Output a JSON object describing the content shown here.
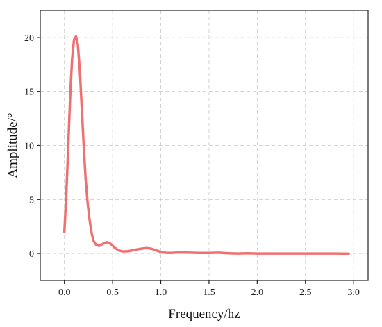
{
  "chart_data": {
    "type": "line",
    "title": "",
    "xlabel": "Frequency/hz",
    "ylabel": "Amplitude/°",
    "xlim": [
      -0.25,
      3.15
    ],
    "ylim": [
      -2.5,
      22.5
    ],
    "x_ticks": [
      0.0,
      0.5,
      1.0,
      1.5,
      2.0,
      2.5,
      3.0
    ],
    "x_tick_labels": [
      "0.0",
      "0.5",
      "1.0",
      "1.5",
      "2.0",
      "2.5",
      "3.0"
    ],
    "y_ticks": [
      0,
      5,
      10,
      15,
      20
    ],
    "y_tick_labels": [
      "0",
      "5",
      "10",
      "15",
      "20"
    ],
    "grid": true,
    "line_color": "#f07070",
    "series": [
      {
        "x": [
          0.0,
          0.02,
          0.04,
          0.06,
          0.08,
          0.1,
          0.12,
          0.14,
          0.16,
          0.18,
          0.2,
          0.22,
          0.24,
          0.26,
          0.28,
          0.3,
          0.33,
          0.36,
          0.4,
          0.44,
          0.48,
          0.52,
          0.56,
          0.6,
          0.65,
          0.7,
          0.75,
          0.8,
          0.85,
          0.9,
          0.95,
          1.0,
          1.05,
          1.1,
          1.2,
          1.3,
          1.4,
          1.5,
          1.6,
          1.7,
          1.8,
          1.9,
          2.0,
          2.2,
          2.4,
          2.6,
          2.8,
          2.95
        ],
        "y": [
          2.0,
          5.5,
          10.0,
          14.5,
          18.0,
          19.8,
          20.1,
          19.3,
          17.0,
          13.5,
          10.0,
          7.0,
          4.8,
          3.2,
          2.0,
          1.2,
          0.8,
          0.7,
          0.9,
          1.05,
          0.9,
          0.55,
          0.3,
          0.2,
          0.2,
          0.28,
          0.38,
          0.45,
          0.5,
          0.45,
          0.3,
          0.15,
          0.07,
          0.05,
          0.1,
          0.08,
          0.05,
          0.05,
          0.08,
          0.02,
          0.0,
          0.02,
          0.0,
          0.0,
          0.0,
          0.0,
          0.0,
          -0.02
        ]
      }
    ]
  }
}
